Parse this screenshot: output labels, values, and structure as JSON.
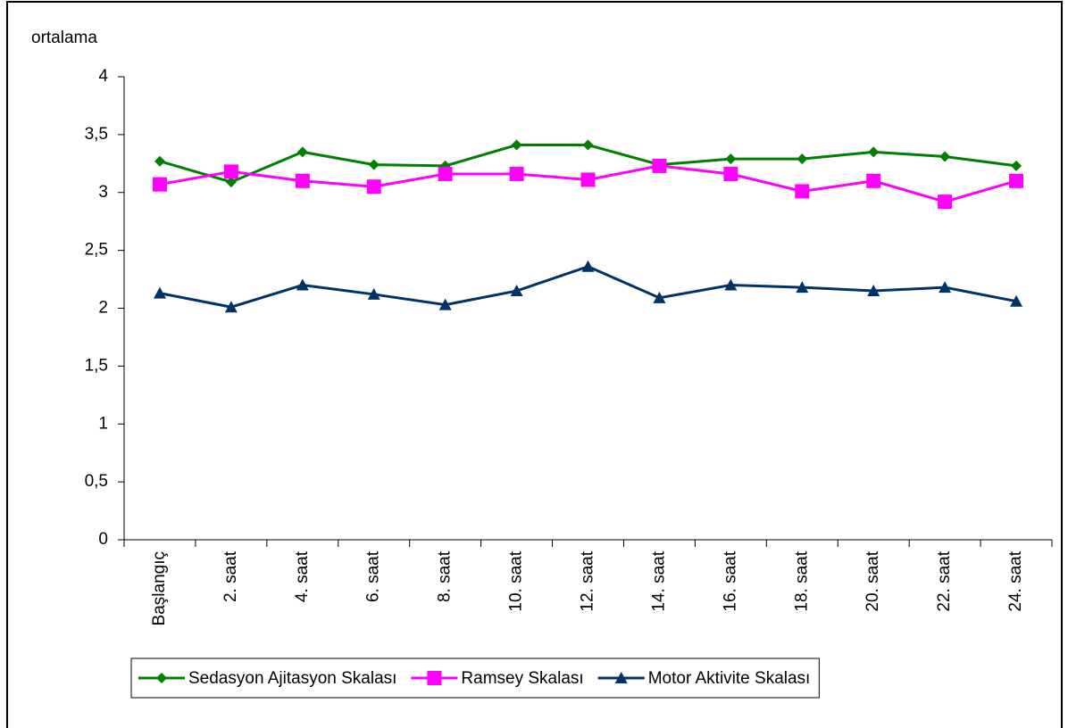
{
  "chart_data": {
    "type": "line",
    "y_label": "ortalama",
    "categories": [
      "Başlangıç",
      "2. saat",
      "4. saat",
      "6. saat",
      "8. saat",
      "10. saat",
      "12. saat",
      "14. saat",
      "16. saat",
      "18. saat",
      "20. saat",
      "22. saat",
      "24. saat"
    ],
    "series": [
      {
        "name": "Sedasyon Ajitasyon Skalası",
        "color": "#008000",
        "marker": "diamond",
        "values": [
          3.27,
          3.09,
          3.35,
          3.24,
          3.23,
          3.41,
          3.41,
          3.24,
          3.29,
          3.29,
          3.35,
          3.31,
          3.23
        ]
      },
      {
        "name": "Ramsey Skalası",
        "color": "#ff00ff",
        "marker": "square",
        "values": [
          3.07,
          3.18,
          3.1,
          3.05,
          3.16,
          3.16,
          3.11,
          3.23,
          3.16,
          3.01,
          3.1,
          2.92,
          3.1
        ]
      },
      {
        "name": "Motor Aktivite Skalası",
        "color": "#003366",
        "marker": "triangle",
        "values": [
          2.13,
          2.01,
          2.2,
          2.12,
          2.03,
          2.15,
          2.36,
          2.09,
          2.2,
          2.18,
          2.15,
          2.18,
          2.06
        ]
      }
    ],
    "ylim": [
      0,
      4
    ],
    "yticks": [
      0,
      {
        "value": 0.5,
        "label": "0,5"
      },
      1,
      {
        "value": 1.5,
        "label": "1,5"
      },
      2,
      {
        "value": 2.5,
        "label": "2,5"
      },
      3,
      {
        "value": 3.5,
        "label": "3,5"
      },
      4
    ],
    "legend": "bottom"
  }
}
